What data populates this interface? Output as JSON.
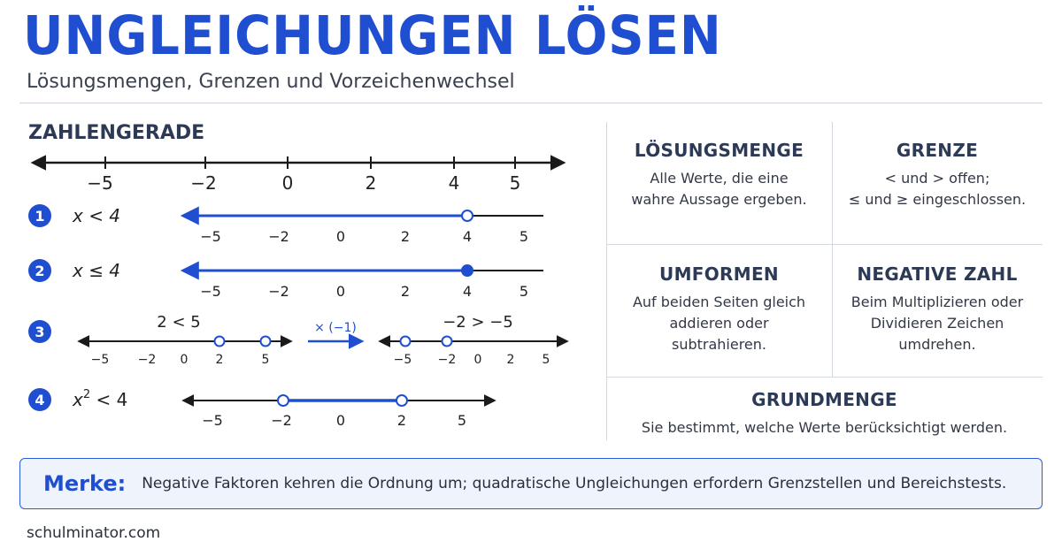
{
  "header": {
    "title": "UNGLEICHUNGEN LÖSEN",
    "subtitle": "Lösungsmengen, Grenzen und Vorzeichenwechsel"
  },
  "number_line": {
    "section_title": "ZAHLENGERADE",
    "main_ticks": [
      "−5",
      "−2",
      "0",
      "2",
      "4",
      "5"
    ],
    "examples": [
      {
        "num": "1",
        "label": "x < 4",
        "ticks": [
          "−5",
          "−2",
          "0",
          "2",
          "4",
          "5"
        ]
      },
      {
        "num": "2",
        "label": "x ≤ 4",
        "ticks": [
          "−5",
          "−2",
          "0",
          "2",
          "4",
          "5"
        ]
      },
      {
        "num": "3",
        "left_label": "2 < 5",
        "left_ticks": [
          "−5",
          "−2",
          "0",
          "2",
          "5"
        ],
        "operation": "× (−1)",
        "right_label": "−2 > −5",
        "right_ticks": [
          "−5",
          "−2",
          "0",
          "2",
          "5"
        ]
      },
      {
        "num": "4",
        "label_base": "x",
        "label_exp": "2",
        "label_rest": " < 4",
        "ticks": [
          "−5",
          "−2",
          "0",
          "2",
          "5"
        ]
      }
    ]
  },
  "info_cells": [
    {
      "title": "LÖSUNGSMENGE",
      "text": [
        "Alle Werte, die eine",
        "wahre Aussage ergeben."
      ]
    },
    {
      "title": "GRENZE",
      "text": [
        "< und > offen;",
        "≤ und ≥ eingeschlossen."
      ]
    },
    {
      "title": "UMFORMEN",
      "text": [
        "Auf beiden Seiten gleich",
        "addieren oder",
        "subtrahieren."
      ]
    },
    {
      "title": "NEGATIVE ZAHL",
      "text": [
        "Beim Multiplizieren oder",
        "Dividieren Zeichen",
        "umdrehen."
      ]
    },
    {
      "title": "GRUNDMENGE",
      "text": [
        "Sie bestimmt, welche Werte berücksichtigt werden."
      ]
    }
  ],
  "merke": {
    "label": "Merke:",
    "text": "Negative Faktoren kehren die Ordnung um; quadratische Ungleichungen erfordern Grenzstellen und Bereichstests."
  },
  "footer": {
    "text": "schulminator.com"
  },
  "colors": {
    "accent": "#1f4fd0",
    "line": "#1a1a1a",
    "text": "#2a2f3a"
  }
}
